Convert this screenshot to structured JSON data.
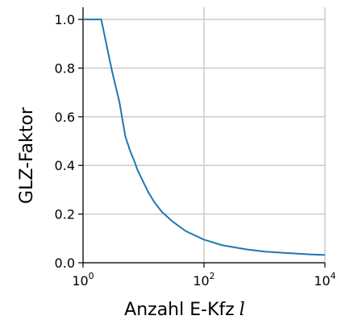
{
  "chart_data": {
    "type": "line",
    "xlabel": "Anzahl E-Kfz",
    "xlabel_var": "l",
    "ylabel": "GLZ-Faktor",
    "x_scale": "log",
    "xlim": [
      1,
      10000
    ],
    "ylim": [
      0,
      1.05
    ],
    "grid": true,
    "x_ticks": [
      {
        "base": "10",
        "exp": "0",
        "value": 1
      },
      {
        "base": "10",
        "exp": "2",
        "value": 100
      },
      {
        "base": "10",
        "exp": "4",
        "value": 10000
      }
    ],
    "y_ticks": [
      {
        "label": "0.0",
        "value": 0.0
      },
      {
        "label": "0.2",
        "value": 0.2
      },
      {
        "label": "0.4",
        "value": 0.4
      },
      {
        "label": "0.6",
        "value": 0.6
      },
      {
        "label": "0.8",
        "value": 0.8
      },
      {
        "label": "1.0",
        "value": 1.0
      }
    ],
    "series": [
      {
        "color": "#1f77b4",
        "x": [
          1,
          2,
          3,
          4,
          5,
          6,
          7,
          8,
          10,
          12,
          15,
          20,
          30,
          50,
          100,
          200,
          500,
          1000,
          2000,
          5000,
          10000
        ],
        "y": [
          1.0,
          1.0,
          0.79,
          0.66,
          0.52,
          0.46,
          0.42,
          0.38,
          0.33,
          0.29,
          0.25,
          0.21,
          0.17,
          0.13,
          0.095,
          0.072,
          0.055,
          0.046,
          0.041,
          0.035,
          0.032
        ]
      }
    ]
  }
}
